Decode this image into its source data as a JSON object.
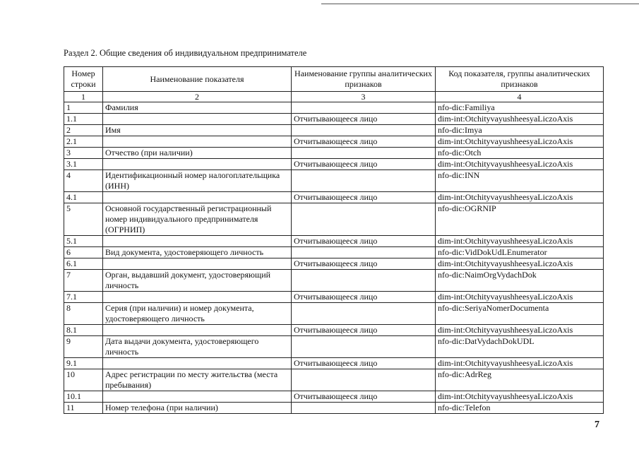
{
  "header": {
    "title": "Раздел 2. Общие сведения об индивидуальном предпринимателе"
  },
  "table": {
    "columns": [
      "Номер строки",
      "Наименование показателя",
      "Наименование группы аналитических признаков",
      "Код показателя, группы аналитических признаков"
    ],
    "column_numbers": [
      "1",
      "2",
      "3",
      "4"
    ],
    "rows": [
      {
        "number": "1",
        "name": "Фамилия",
        "code": "nfo-dic:Familiya"
      },
      {
        "number": "1.1",
        "group": "Отчитывающееся лицо",
        "code": "dim-int:OtchityvayushheesyaLiczoAxis"
      },
      {
        "number": "2",
        "name": "Имя",
        "code": "nfo-dic:Imya"
      },
      {
        "number": "2.1",
        "group": "Отчитывающееся лицо",
        "code": "dim-int:OtchityvayushheesyaLiczoAxis"
      },
      {
        "number": "3",
        "name": "Отчество (при наличии)",
        "code": "nfo-dic:Otch"
      },
      {
        "number": "3.1",
        "group": "Отчитывающееся лицо",
        "code": "dim-int:OtchityvayushheesyaLiczoAxis"
      },
      {
        "number": "4",
        "name": "Идентификационный номер налогоплательщика (ИНН)",
        "code": "nfo-dic:INN"
      },
      {
        "number": "4.1",
        "group": "Отчитывающееся лицо",
        "code": "dim-int:OtchityvayushheesyaLiczoAxis"
      },
      {
        "number": "5",
        "name": "Основной государственный регистрационный номер индивидуального предпринимателя (ОГРНИП)",
        "code": "nfo-dic:OGRNIP"
      },
      {
        "number": "5.1",
        "group": "Отчитывающееся лицо",
        "code": "dim-int:OtchityvayushheesyaLiczoAxis"
      },
      {
        "number": "6",
        "name": "Вид документа, удостоверяющего личность",
        "code": "nfo-dic:VidDokUdLEnumerator"
      },
      {
        "number": "6.1",
        "group": "Отчитывающееся лицо",
        "code": "dim-int:OtchityvayushheesyaLiczoAxis"
      },
      {
        "number": "7",
        "name": "Орган, выдавший документ, удостоверяющий личность",
        "code": "nfo-dic:NaimOrgVydachDok"
      },
      {
        "number": "7.1",
        "group": "Отчитывающееся лицо",
        "code": "dim-int:OtchityvayushheesyaLiczoAxis"
      },
      {
        "number": "8",
        "name": "Серия (при наличии) и номер документа, удостоверяющего личность",
        "code": "nfo-dic:SeriyaNomerDocumenta"
      },
      {
        "number": "8.1",
        "group": "Отчитывающееся лицо",
        "code": "dim-int:OtchityvayushheesyaLiczoAxis"
      },
      {
        "number": "9",
        "name": "Дата выдачи документа, удостоверяющего личность",
        "code": "nfo-dic:DatVydachDokUDL"
      },
      {
        "number": "9.1",
        "group": "Отчитывающееся лицо",
        "code": "dim-int:OtchityvayushheesyaLiczoAxis"
      },
      {
        "number": "10",
        "name": "Адрес регистрации по месту жительства (места пребывания)",
        "code": "nfo-dic:AdrReg"
      },
      {
        "number": "10.1",
        "group": "Отчитывающееся лицо",
        "code": "dim-int:OtchityvayushheesyaLiczoAxis"
      },
      {
        "number": "11",
        "name": "Номер телефона (при наличии)",
        "code": "nfo-dic:Telefon"
      }
    ]
  },
  "footer": {
    "page_number": "7"
  }
}
